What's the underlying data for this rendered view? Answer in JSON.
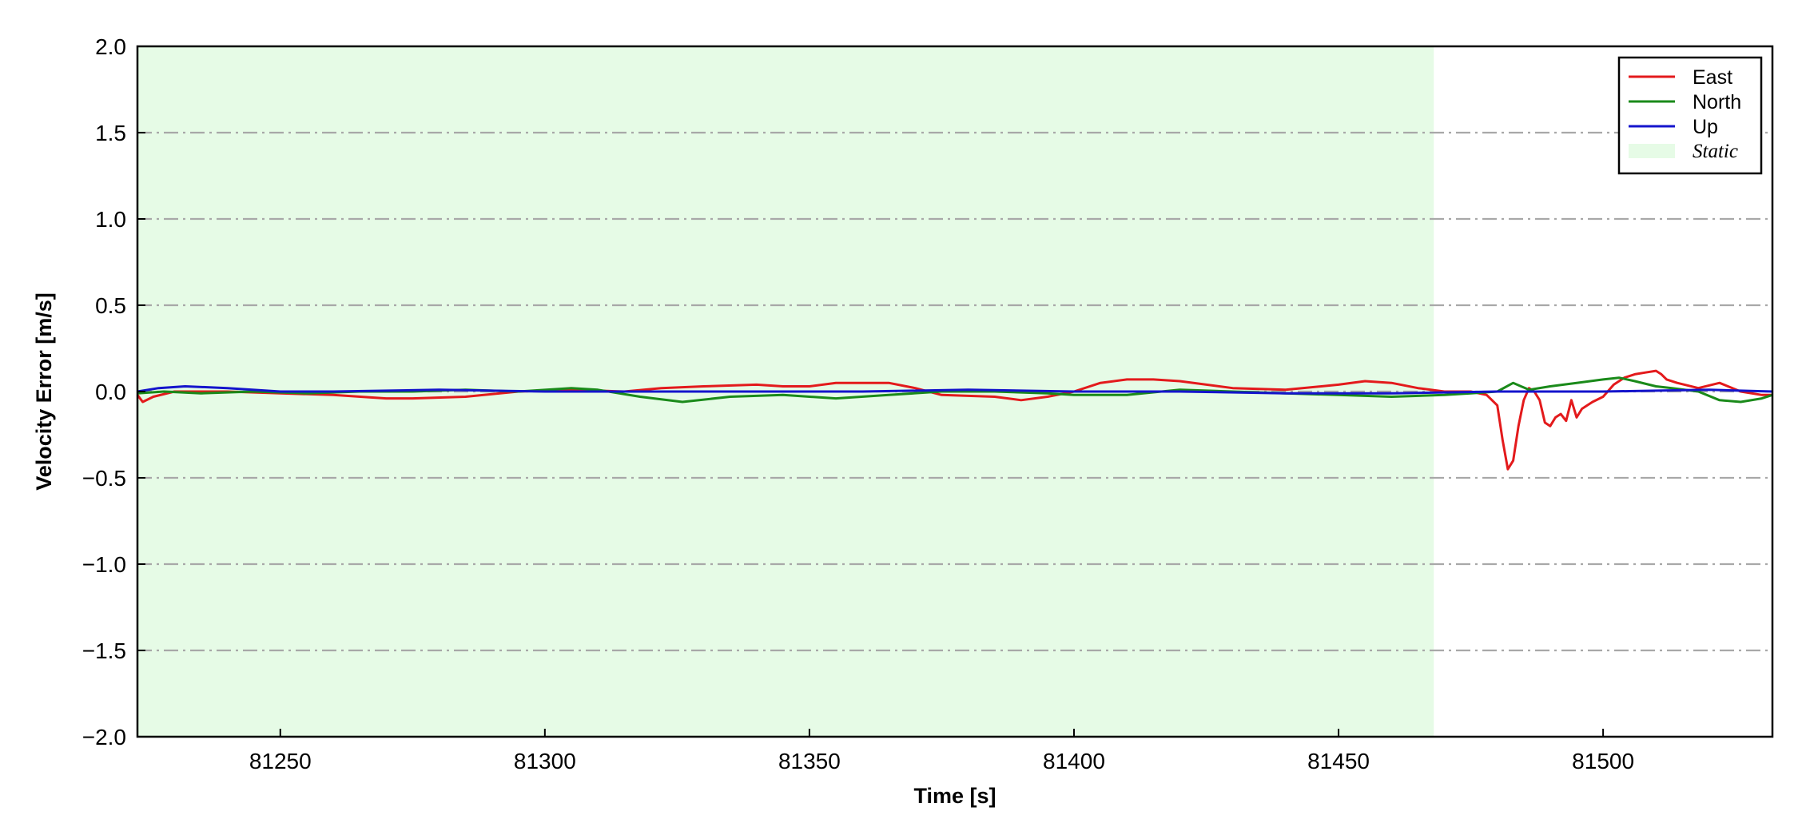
{
  "chart_data": {
    "type": "line",
    "xlabel": "Time [s]",
    "ylabel": "Velocity Error [m/s]",
    "xlim": [
      81223,
      81532
    ],
    "ylim": [
      -2.0,
      2.0
    ],
    "x_ticks": [
      81250,
      81300,
      81350,
      81400,
      81450,
      81500
    ],
    "y_ticks": [
      -2.0,
      -1.5,
      -1.0,
      -0.5,
      0.0,
      0.5,
      1.0,
      1.5,
      2.0
    ],
    "x_tick_labels": [
      "81250",
      "81300",
      "81350",
      "81400",
      "81450",
      "81500"
    ],
    "y_tick_labels": [
      "−2.0",
      "−1.5",
      "−1.0",
      "−0.5",
      "0.0",
      "0.5",
      "1.0",
      "1.5",
      "2.0"
    ],
    "grid": "horizontal dash-dot",
    "legend_position": "top-right",
    "shaded_region": {
      "label": "Static",
      "x_start": 81223,
      "x_end": 81468,
      "color": "#e6fbe6"
    },
    "series": [
      {
        "name": "East",
        "color": "#e31a1c",
        "x": [
          81223,
          81224,
          81226,
          81230,
          81240,
          81250,
          81260,
          81270,
          81275,
          81285,
          81295,
          81305,
          81315,
          81322,
          81330,
          81340,
          81345,
          81350,
          81355,
          81360,
          81365,
          81370,
          81375,
          81385,
          81390,
          81395,
          81400,
          81405,
          81410,
          81415,
          81420,
          81430,
          81440,
          81450,
          81455,
          81460,
          81465,
          81470,
          81475,
          81478,
          81480,
          81481,
          81482,
          81483,
          81484,
          81485,
          81486,
          81487,
          81488,
          81489,
          81490,
          81491,
          81492,
          81493,
          81494,
          81495,
          81496,
          81497,
          81498,
          81500,
          81502,
          81504,
          81506,
          81508,
          81510,
          81511,
          81512,
          81514,
          81518,
          81522,
          81526,
          81530,
          81532
        ],
        "y": [
          -0.02,
          -0.06,
          -0.03,
          0.0,
          0.0,
          -0.01,
          -0.02,
          -0.04,
          -0.04,
          -0.03,
          0.0,
          0.01,
          0.0,
          0.02,
          0.03,
          0.04,
          0.03,
          0.03,
          0.05,
          0.05,
          0.05,
          0.02,
          -0.02,
          -0.03,
          -0.05,
          -0.03,
          0.0,
          0.05,
          0.07,
          0.07,
          0.06,
          0.02,
          0.01,
          0.04,
          0.06,
          0.05,
          0.02,
          0.0,
          0.0,
          -0.02,
          -0.08,
          -0.28,
          -0.45,
          -0.4,
          -0.2,
          -0.05,
          0.02,
          0.0,
          -0.05,
          -0.18,
          -0.2,
          -0.15,
          -0.13,
          -0.17,
          -0.05,
          -0.15,
          -0.1,
          -0.08,
          -0.06,
          -0.03,
          0.04,
          0.08,
          0.1,
          0.11,
          0.12,
          0.1,
          0.07,
          0.05,
          0.02,
          0.05,
          0.0,
          -0.02,
          -0.02
        ]
      },
      {
        "name": "North",
        "color": "#1a8a1a",
        "x": [
          81223,
          81228,
          81235,
          81245,
          81255,
          81265,
          81275,
          81285,
          81295,
          81305,
          81310,
          81318,
          81326,
          81335,
          81345,
          81355,
          81365,
          81375,
          81385,
          81395,
          81400,
          81410,
          81420,
          81430,
          81440,
          81450,
          81460,
          81470,
          81475,
          81480,
          81483,
          81486,
          81490,
          81495,
          81500,
          81503,
          81506,
          81510,
          81513,
          81518,
          81522,
          81526,
          81530,
          81532
        ],
        "y": [
          -0.01,
          0.0,
          -0.01,
          0.0,
          -0.01,
          0.0,
          0.0,
          0.01,
          0.0,
          0.02,
          0.01,
          -0.03,
          -0.06,
          -0.03,
          -0.02,
          -0.04,
          -0.02,
          0.0,
          0.0,
          -0.01,
          -0.02,
          -0.02,
          0.01,
          0.0,
          -0.01,
          -0.02,
          -0.03,
          -0.02,
          -0.01,
          0.0,
          0.05,
          0.01,
          0.03,
          0.05,
          0.07,
          0.08,
          0.06,
          0.03,
          0.02,
          0.0,
          -0.05,
          -0.06,
          -0.04,
          -0.02
        ]
      },
      {
        "name": "Up",
        "color": "#1414cc",
        "x": [
          81223,
          81227,
          81232,
          81240,
          81250,
          81260,
          81280,
          81300,
          81320,
          81340,
          81360,
          81380,
          81400,
          81420,
          81440,
          81460,
          81480,
          81500,
          81520,
          81532
        ],
        "y": [
          0.0,
          0.02,
          0.03,
          0.02,
          0.0,
          0.0,
          0.01,
          0.0,
          0.0,
          0.0,
          0.0,
          0.01,
          0.0,
          0.0,
          -0.01,
          -0.01,
          0.0,
          0.0,
          0.01,
          0.0
        ]
      }
    ]
  },
  "legend": {
    "entries": [
      "East",
      "North",
      "Up"
    ],
    "static_label": "Static"
  }
}
